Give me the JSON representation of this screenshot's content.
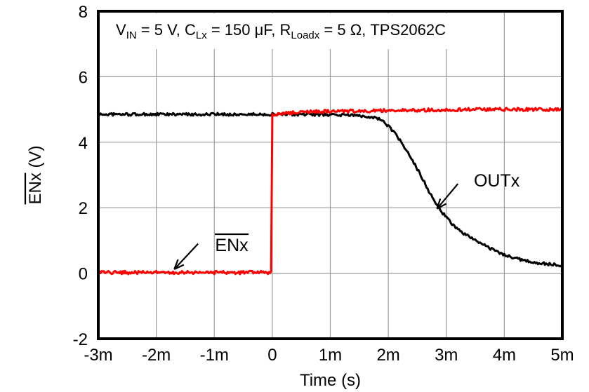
{
  "chart_data": {
    "type": "line",
    "description": "Turn-off timing waveform: active-low enable (ENx, red) steps from 0 V to 5 V at t = 0 and output (OUTx, black) discharges from ~4.85 V to ~0.2 V",
    "conditions_segments": [
      {
        "text": "V",
        "sub": "IN"
      },
      {
        "text": " = 5 V, C",
        "sub": "Lx"
      },
      {
        "text": " = 150 μF, R",
        "sub": "Loadx"
      },
      {
        "text": " = 5 Ω, TPS2062C",
        "sub": ""
      }
    ],
    "x_axis": {
      "label": "Time (s)",
      "range_ms": [
        -3,
        5
      ],
      "ticks": [
        {
          "label": "-3m",
          "value": -3
        },
        {
          "label": "-2m",
          "value": -2
        },
        {
          "label": "-1m",
          "value": -1
        },
        {
          "label": "0",
          "value": 0
        },
        {
          "label": "1m",
          "value": 1
        },
        {
          "label": "2m",
          "value": 2
        },
        {
          "label": "3m",
          "value": 3
        },
        {
          "label": "4m",
          "value": 4
        },
        {
          "label": "5m",
          "value": 5
        }
      ]
    },
    "y_axis": {
      "label_main": "ENx",
      "label_main_overline": true,
      "label_suffix": " (V)",
      "range_v": [
        -2,
        8
      ],
      "ticks": [
        {
          "label": "8",
          "value": 8
        },
        {
          "label": "6",
          "value": 6
        },
        {
          "label": "4",
          "value": 4
        },
        {
          "label": "2",
          "value": 2
        },
        {
          "label": "0",
          "value": 0
        },
        {
          "label": "-2",
          "value": -2
        }
      ]
    },
    "grid": {
      "x_values_ms": [
        -2,
        -1,
        0,
        1,
        2,
        3,
        4
      ],
      "y_values_v": [
        6,
        4,
        2,
        0
      ],
      "color": "#9c9c9c"
    },
    "frame_color": "#000000",
    "series": [
      {
        "name": "OUTx",
        "color": "#000000",
        "noise_v": 0.042,
        "points_ms_v": [
          [
            -3,
            4.85
          ],
          [
            -2.5,
            4.85
          ],
          [
            -2,
            4.85
          ],
          [
            -1.5,
            4.85
          ],
          [
            -1,
            4.85
          ],
          [
            -0.5,
            4.85
          ],
          [
            0,
            4.85
          ],
          [
            0.5,
            4.85
          ],
          [
            1,
            4.84
          ],
          [
            1.3,
            4.83
          ],
          [
            1.6,
            4.8
          ],
          [
            1.8,
            4.74
          ],
          [
            1.9,
            4.65
          ],
          [
            2.0,
            4.5
          ],
          [
            2.1,
            4.3
          ],
          [
            2.2,
            4.05
          ],
          [
            2.3,
            3.78
          ],
          [
            2.4,
            3.5
          ],
          [
            2.5,
            3.18
          ],
          [
            2.6,
            2.85
          ],
          [
            2.7,
            2.5
          ],
          [
            2.8,
            2.18
          ],
          [
            2.9,
            1.92
          ],
          [
            3.0,
            1.7
          ],
          [
            3.1,
            1.5
          ],
          [
            3.2,
            1.35
          ],
          [
            3.3,
            1.22
          ],
          [
            3.4,
            1.1
          ],
          [
            3.6,
            0.9
          ],
          [
            3.8,
            0.72
          ],
          [
            4.0,
            0.56
          ],
          [
            4.2,
            0.45
          ],
          [
            4.4,
            0.37
          ],
          [
            4.6,
            0.31
          ],
          [
            4.8,
            0.27
          ],
          [
            5.0,
            0.24
          ]
        ]
      },
      {
        "name": "ENx",
        "color": "#ff0000",
        "noise_v": 0.05,
        "points_ms_v": [
          [
            -3,
            0.02
          ],
          [
            -2.5,
            0.02
          ],
          [
            -2,
            0.02
          ],
          [
            -1.5,
            0.02
          ],
          [
            -1,
            0.02
          ],
          [
            -0.5,
            0.02
          ],
          [
            -0.02,
            0.02
          ],
          [
            0,
            4.86
          ],
          [
            0.3,
            4.9
          ],
          [
            0.7,
            4.93
          ],
          [
            1,
            4.94
          ],
          [
            1.5,
            4.96
          ],
          [
            2,
            4.97
          ],
          [
            2.5,
            4.98
          ],
          [
            3,
            4.99
          ],
          [
            3.5,
            5.0
          ],
          [
            4,
            5.0
          ],
          [
            4.5,
            5.0
          ],
          [
            5,
            5.0
          ]
        ]
      }
    ],
    "annotations": [
      {
        "text": "ENx",
        "overline": true,
        "label_pos_ms_v": [
          -0.7,
          0.87
        ],
        "arrow_from_ms_v": [
          -1.28,
          0.9
        ],
        "arrow_to_ms_v": [
          -1.69,
          0.12
        ]
      },
      {
        "text": "OUTx",
        "overline": false,
        "label_pos_ms_v": [
          3.87,
          2.84
        ],
        "arrow_from_ms_v": [
          3.2,
          2.73
        ],
        "arrow_to_ms_v": [
          2.84,
          1.97
        ]
      }
    ]
  }
}
